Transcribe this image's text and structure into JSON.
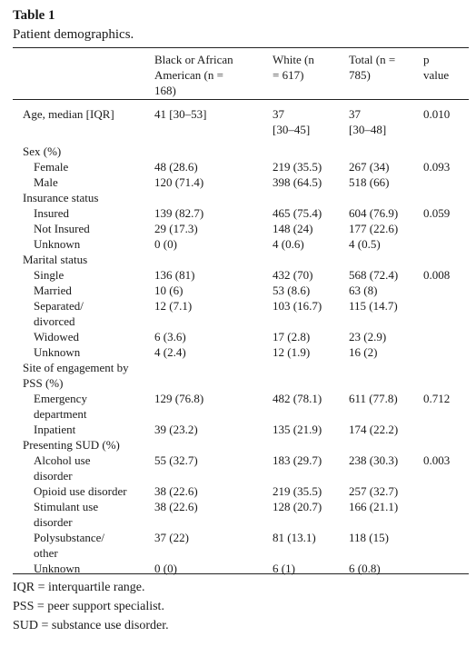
{
  "table": {
    "label": "Table 1",
    "caption": "Patient demographics.",
    "headers": [
      [
        "Black or African",
        "American (n =",
        "168)"
      ],
      [
        "White (n",
        "= 617)"
      ],
      [
        "Total (n =",
        "785)"
      ],
      [
        "p",
        "value"
      ]
    ],
    "rows": [
      {
        "label": [
          "Age, median [IQR]"
        ],
        "indent": 1,
        "black": [
          "41 [30–53]"
        ],
        "white": [
          "37",
          "[30–45]"
        ],
        "total": [
          "37",
          "[30–48]"
        ],
        "p": [
          "0.010"
        ]
      },
      {
        "label": [
          "Sex (%)"
        ],
        "indent": 0,
        "black": [],
        "white": [],
        "total": [],
        "p": []
      },
      {
        "label": [
          "Female"
        ],
        "indent": 2,
        "black": [
          "48 (28.6)"
        ],
        "white": [
          "219 (35.5)"
        ],
        "total": [
          "267 (34)"
        ],
        "p": [
          "0.093"
        ]
      },
      {
        "label": [
          "Male"
        ],
        "indent": 2,
        "black": [
          "120 (71.4)"
        ],
        "white": [
          "398 (64.5)"
        ],
        "total": [
          "518 (66)"
        ],
        "p": []
      },
      {
        "label": [
          "Insurance status"
        ],
        "indent": 0,
        "black": [],
        "white": [],
        "total": [],
        "p": []
      },
      {
        "label": [
          "Insured"
        ],
        "indent": 2,
        "black": [
          "139 (82.7)"
        ],
        "white": [
          "465 (75.4)"
        ],
        "total": [
          "604 (76.9)"
        ],
        "p": [
          "0.059"
        ]
      },
      {
        "label": [
          "Not Insured"
        ],
        "indent": 2,
        "black": [
          "29 (17.3)"
        ],
        "white": [
          "148 (24)"
        ],
        "total": [
          "177 (22.6)"
        ],
        "p": []
      },
      {
        "label": [
          "Unknown"
        ],
        "indent": 2,
        "black": [
          "0 (0)"
        ],
        "white": [
          "4 (0.6)"
        ],
        "total": [
          "4 (0.5)"
        ],
        "p": []
      },
      {
        "label": [
          "Marital status"
        ],
        "indent": 0,
        "black": [],
        "white": [],
        "total": [],
        "p": []
      },
      {
        "label": [
          "Single"
        ],
        "indent": 2,
        "black": [
          "136 (81)"
        ],
        "white": [
          "432 (70)"
        ],
        "total": [
          "568 (72.4)"
        ],
        "p": [
          "0.008"
        ]
      },
      {
        "label": [
          "Married"
        ],
        "indent": 2,
        "black": [
          "10 (6)"
        ],
        "white": [
          "53 (8.6)"
        ],
        "total": [
          "63 (8)"
        ],
        "p": []
      },
      {
        "label": [
          "Separated/",
          "divorced"
        ],
        "indent": 2,
        "black": [
          "12 (7.1)"
        ],
        "white": [
          "103 (16.7)"
        ],
        "total": [
          "115 (14.7)"
        ],
        "p": []
      },
      {
        "label": [
          "Widowed"
        ],
        "indent": 2,
        "black": [
          "6 (3.6)"
        ],
        "white": [
          "17 (2.8)"
        ],
        "total": [
          "23 (2.9)"
        ],
        "p": []
      },
      {
        "label": [
          "Unknown"
        ],
        "indent": 2,
        "black": [
          "4 (2.4)"
        ],
        "white": [
          "12 (1.9)"
        ],
        "total": [
          "16 (2)"
        ],
        "p": []
      },
      {
        "label": [
          "Site of engagement by",
          "PSS (%)"
        ],
        "indent": 0,
        "black": [],
        "white": [],
        "total": [],
        "p": []
      },
      {
        "label": [
          "Emergency",
          "department"
        ],
        "indent": 2,
        "black": [
          "129 (76.8)"
        ],
        "white": [
          "482 (78.1)"
        ],
        "total": [
          "611 (77.8)"
        ],
        "p": [
          "0.712"
        ]
      },
      {
        "label": [
          "Inpatient"
        ],
        "indent": 2,
        "black": [
          "39 (23.2)"
        ],
        "white": [
          "135 (21.9)"
        ],
        "total": [
          "174 (22.2)"
        ],
        "p": []
      },
      {
        "label": [
          "Presenting SUD (%)"
        ],
        "indent": 0,
        "black": [],
        "white": [],
        "total": [],
        "p": []
      },
      {
        "label": [
          "Alcohol use",
          "disorder"
        ],
        "indent": 2,
        "black": [
          "55 (32.7)"
        ],
        "white": [
          "183 (29.7)"
        ],
        "total": [
          "238 (30.3)"
        ],
        "p": [
          "0.003"
        ]
      },
      {
        "label": [
          "Opioid use disorder"
        ],
        "indent": 2,
        "black": [
          "38 (22.6)"
        ],
        "white": [
          "219 (35.5)"
        ],
        "total": [
          "257 (32.7)"
        ],
        "p": []
      },
      {
        "label": [
          "Stimulant use",
          "disorder"
        ],
        "indent": 2,
        "black": [
          "38 (22.6)"
        ],
        "white": [
          "128 (20.7)"
        ],
        "total": [
          "166 (21.1)"
        ],
        "p": []
      },
      {
        "label": [
          "Polysubstance/",
          "other"
        ],
        "indent": 2,
        "black": [
          "37 (22)"
        ],
        "white": [
          "81 (13.1)"
        ],
        "total": [
          "118 (15)"
        ],
        "p": []
      },
      {
        "label": [
          "Unknown"
        ],
        "indent": 2,
        "black": [
          "0 (0)"
        ],
        "white": [
          "6 (1)"
        ],
        "total": [
          "6 (0.8)"
        ],
        "p": []
      }
    ],
    "footnotes": [
      "IQR = interquartile range.",
      "PSS = peer support specialist.",
      "SUD = substance use disorder."
    ]
  }
}
